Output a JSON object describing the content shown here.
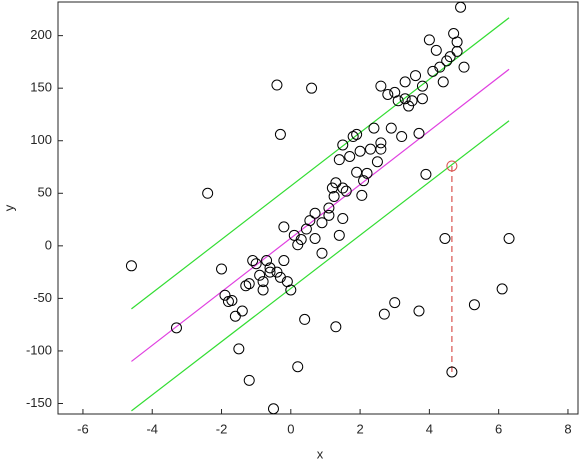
{
  "chart_data": {
    "type": "scatter",
    "xlabel": "x",
    "ylabel": "y",
    "xlim": [
      -6.72,
      8.29
    ],
    "ylim": [
      -160,
      232
    ],
    "xticks": [
      -6,
      -4,
      -2,
      0,
      2,
      4,
      6,
      8
    ],
    "yticks": [
      -150,
      -100,
      -50,
      0,
      50,
      100,
      150,
      200
    ],
    "series": [
      {
        "color": "#000000",
        "marker": "circle",
        "x": [
          -4.6,
          -3.3,
          -2.4,
          -2,
          -1.9,
          -1.8,
          -1.7,
          -1.6,
          -1.5,
          -1.4,
          -1.3,
          -1.2,
          -1.2,
          -1.1,
          -1,
          -0.9,
          -0.8,
          -0.8,
          -0.7,
          -0.6,
          -0.6,
          -0.5,
          -0.4,
          -0.4,
          -0.3,
          -0.3,
          -0.2,
          -0.2,
          -0.1,
          0,
          0.1,
          0.2,
          0.2,
          0.3,
          0.4,
          0.45,
          0.55,
          0.6,
          0.7,
          0.7,
          0.9,
          0.9,
          1.1,
          1.1,
          1.2,
          1.25,
          1.3,
          1.3,
          1.4,
          1.4,
          1.5,
          1.5,
          1.5,
          1.6,
          1.7,
          1.8,
          1.9,
          1.9,
          2,
          2.05,
          2.1,
          2.2,
          2.3,
          2.4,
          2.5,
          2.6,
          2.6,
          2.6,
          2.7,
          2.8,
          2.9,
          3,
          3,
          3.1,
          3.2,
          3.3,
          3.3,
          3.4,
          3.5,
          3.6,
          3.7,
          3.7,
          3.8,
          3.8,
          3.9,
          4,
          4.1,
          4.2,
          4.3,
          4.4,
          4.45,
          4.5,
          4.6,
          4.7,
          4.8,
          4.8,
          4.9,
          5,
          5.3,
          6.1,
          6.3,
          4.65
        ],
        "values": [
          -19,
          -78,
          50,
          -22,
          -47,
          -53,
          -52,
          -67,
          -98,
          -62,
          -38,
          -128,
          -36,
          -14,
          -17,
          -28,
          -42,
          -34,
          -14,
          -21,
          -25,
          -155,
          153,
          -25,
          106,
          -30,
          18,
          -14,
          -34,
          -42,
          10,
          -115,
          1,
          6,
          -70,
          16,
          24,
          150,
          7,
          31,
          22,
          -7,
          29,
          36,
          55,
          47,
          -77,
          60,
          10,
          82,
          96,
          26,
          55,
          52,
          85,
          104,
          106,
          70,
          90,
          48,
          62,
          69,
          92,
          112,
          80,
          98,
          92,
          152,
          -65,
          144,
          112,
          -54,
          146,
          138,
          104,
          140,
          156,
          133,
          138,
          162,
          107,
          -62,
          140,
          152,
          68,
          196,
          166,
          186,
          170,
          156,
          7,
          176,
          180,
          202,
          194,
          185,
          227,
          170,
          -56,
          -41,
          7,
          -120
        ]
      },
      {
        "color": "#d9534f",
        "marker": "circle",
        "x": [
          4.65
        ],
        "values": [
          76
        ]
      }
    ],
    "lines": [
      {
        "color": "#e040e0",
        "dash": false,
        "x": [
          -4.6,
          6.3
        ],
        "values": [
          -110,
          168
        ]
      },
      {
        "color": "#33dd33",
        "dash": false,
        "x": [
          -4.6,
          6.3
        ],
        "values": [
          -60,
          217
        ]
      },
      {
        "color": "#33dd33",
        "dash": false,
        "x": [
          -4.6,
          6.3
        ],
        "values": [
          -157,
          119
        ]
      },
      {
        "color": "#d9534f",
        "dash": true,
        "x": [
          4.65,
          4.65
        ],
        "values": [
          76,
          -120
        ]
      }
    ]
  }
}
